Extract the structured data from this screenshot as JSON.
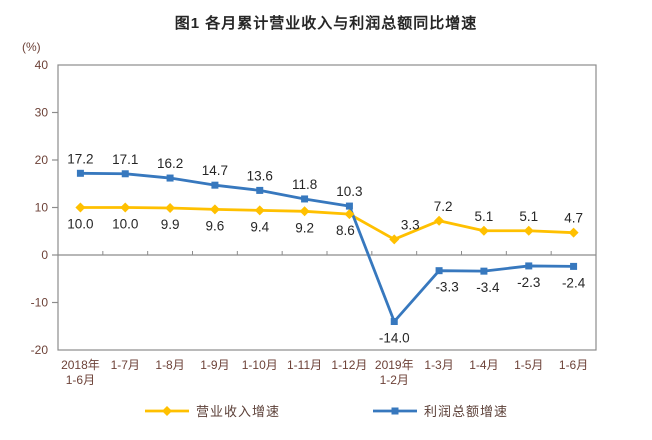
{
  "chart_data": {
    "type": "line",
    "title": "图1  各月累计营业收入与利润总额同比增速",
    "unit_label": "(%)",
    "categories": [
      [
        "2018年",
        "1-6月"
      ],
      [
        "1-7月"
      ],
      [
        "1-8月"
      ],
      [
        "1-9月"
      ],
      [
        "1-10月"
      ],
      [
        "1-11月"
      ],
      [
        "1-12月"
      ],
      [
        "2019年",
        "1-2月"
      ],
      [
        "1-3月"
      ],
      [
        "1-4月"
      ],
      [
        "1-5月"
      ],
      [
        "1-6月"
      ]
    ],
    "ylim": [
      -20,
      40
    ],
    "ytick_step": 10,
    "yticks": [
      40,
      30,
      20,
      10,
      0,
      -10,
      -20
    ],
    "grid": false,
    "legend_position": "bottom",
    "series": [
      {
        "name": "营业收入增速",
        "color": "#FFC000",
        "marker": "diamond",
        "values": [
          10.0,
          10.0,
          9.9,
          9.6,
          9.4,
          9.2,
          8.6,
          3.3,
          7.2,
          5.1,
          5.1,
          4.7
        ],
        "label_side": [
          "below",
          "below",
          "below",
          "below",
          "below",
          "below",
          "below",
          "above",
          "above",
          "above",
          "above",
          "above"
        ],
        "label_dx": [
          0,
          0,
          0,
          0,
          0,
          0,
          -4,
          16,
          4,
          0,
          0,
          0
        ]
      },
      {
        "name": "利润总额增速",
        "color": "#3778BE",
        "marker": "square",
        "values": [
          17.2,
          17.1,
          16.2,
          14.7,
          13.6,
          11.8,
          10.3,
          -14.0,
          -3.3,
          -3.4,
          -2.3,
          -2.4
        ],
        "label_side": [
          "above",
          "above",
          "above",
          "above",
          "above",
          "above",
          "above",
          "below",
          "below",
          "below",
          "below",
          "below"
        ],
        "label_dx": [
          0,
          0,
          0,
          0,
          0,
          0,
          0,
          0,
          8,
          4,
          0,
          0
        ]
      }
    ],
    "colors": {
      "axis_text": "#6d4238",
      "data_label": "#262626",
      "frame": "#8c8c8c"
    }
  }
}
